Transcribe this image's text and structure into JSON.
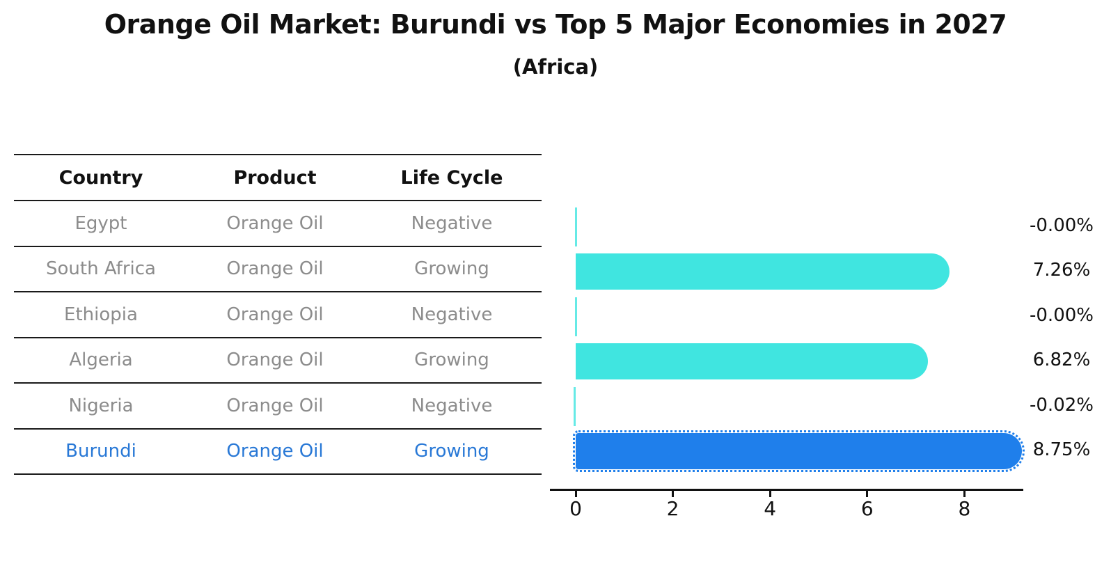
{
  "title": "Orange Oil Market: Burundi vs Top 5 Major Economies in 2027",
  "subtitle": "(Africa)",
  "table": {
    "headers": [
      "Country",
      "Product",
      "Life Cycle"
    ],
    "rows": [
      {
        "country": "Egypt",
        "product": "Orange Oil",
        "life_cycle": "Negative",
        "highlight": false
      },
      {
        "country": "South Africa",
        "product": "Orange Oil",
        "life_cycle": "Growing",
        "highlight": false
      },
      {
        "country": "Ethiopia",
        "product": "Orange Oil",
        "life_cycle": "Negative",
        "highlight": false
      },
      {
        "country": "Algeria",
        "product": "Orange Oil",
        "life_cycle": "Growing",
        "highlight": false
      },
      {
        "country": "Nigeria",
        "product": "Orange Oil",
        "life_cycle": "Negative",
        "highlight": false
      },
      {
        "country": "Burundi",
        "product": "Orange Oil",
        "life_cycle": "Growing",
        "highlight": true
      }
    ]
  },
  "chart_data": {
    "type": "bar",
    "orientation": "horizontal",
    "categories": [
      "Egypt",
      "South Africa",
      "Ethiopia",
      "Algeria",
      "Nigeria",
      "Burundi"
    ],
    "values": [
      -0.0,
      7.26,
      -0.0,
      6.82,
      -0.02,
      8.75
    ],
    "value_labels": [
      "-0.00%",
      "7.26%",
      "-0.00%",
      "6.82%",
      "-0.02%",
      "8.75%"
    ],
    "highlight_index": 5,
    "xticks": [
      0,
      2,
      4,
      6,
      8
    ],
    "xlim": [
      -0.53,
      9.2
    ],
    "grid": false,
    "legend": false,
    "xlabel": "",
    "ylabel": ""
  },
  "colors": {
    "bar_cyan": "#40E5E0",
    "bar_blue": "#1F7FEB",
    "accent_text": "#2878D6",
    "row_text": "#8C8C8C",
    "line": "#1A1A1A",
    "label_text": "#111111"
  }
}
